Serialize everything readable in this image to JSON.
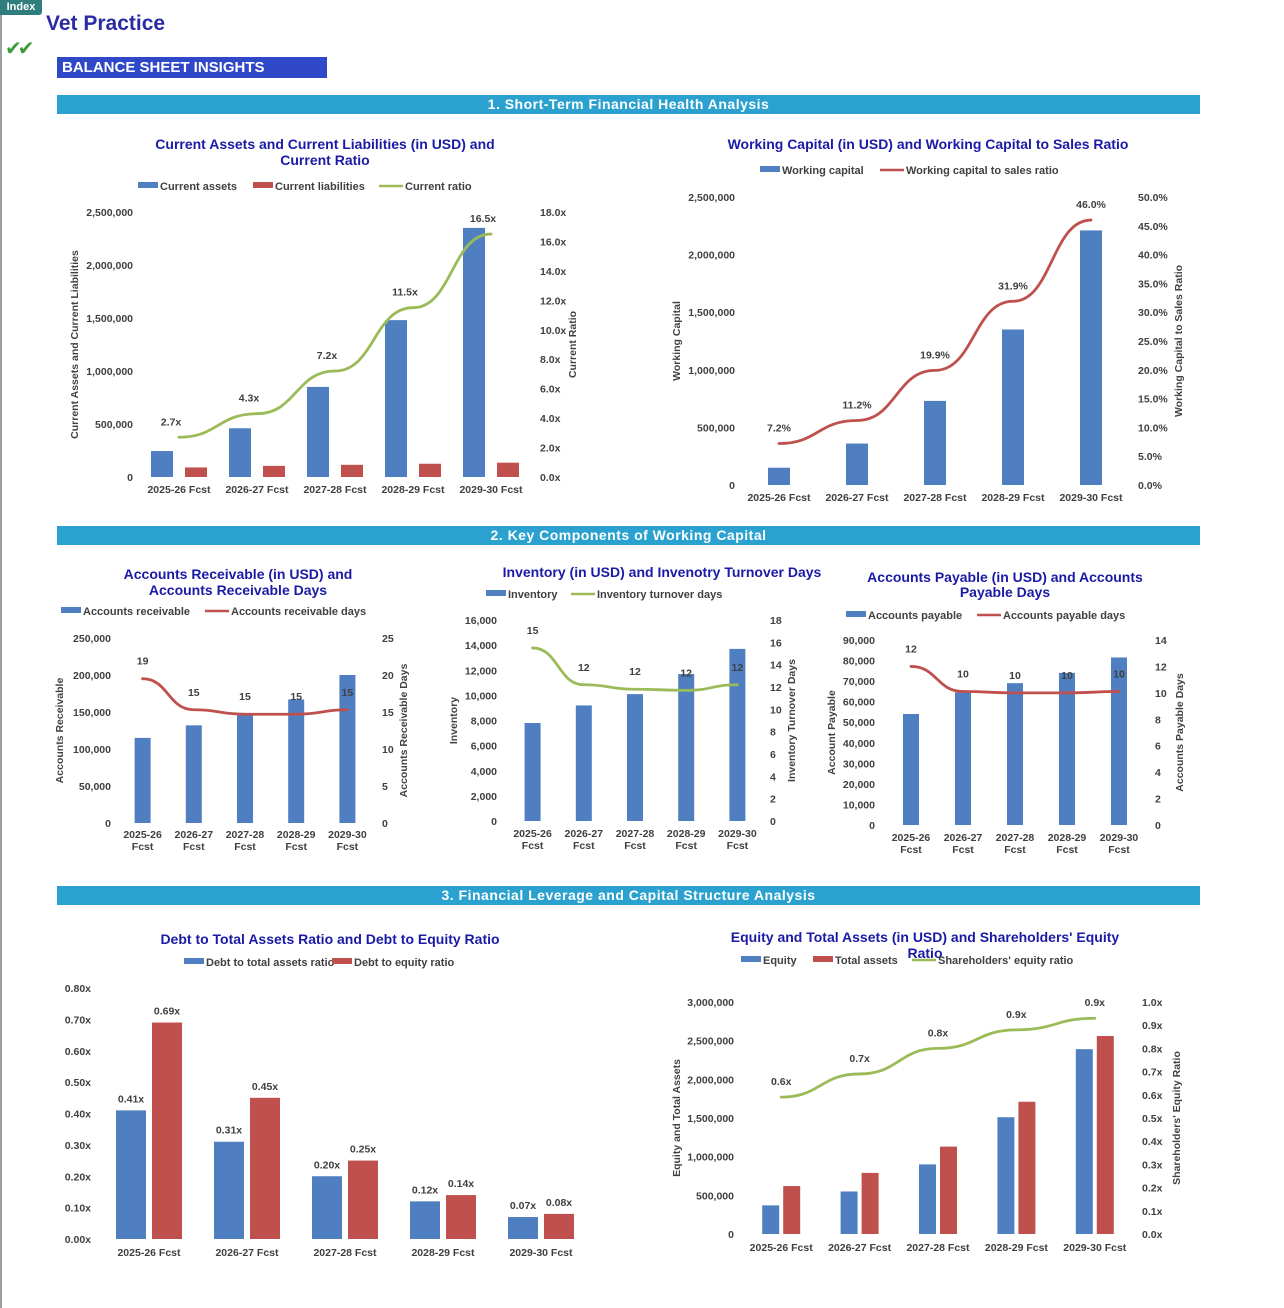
{
  "header": {
    "index_label": "Index",
    "app_title": "Vet Practice",
    "check_glyph": "✔✔",
    "insights_title": "BALANCE SHEET INSIGHTS"
  },
  "sections": [
    {
      "title": "1. Short-Term Financial Health Analysis"
    },
    {
      "title": "2. Key Components of Working Capital"
    },
    {
      "title": "3. Financial Leverage and Capital Structure Analysis"
    }
  ],
  "colors": {
    "blue": "#4f7fc1",
    "red": "#c0504d",
    "green": "#9bbb59",
    "title": "#1a1aa6",
    "band": "#2aa1cf"
  },
  "chart_data": [
    {
      "id": "c1",
      "type": "bar",
      "title": "Current Assets and Current Liabilities (in USD) and Current Ratio",
      "categories": [
        "2025-26 Fcst",
        "2026-27 Fcst",
        "2027-28 Fcst",
        "2028-29 Fcst",
        "2029-30 Fcst"
      ],
      "series": [
        {
          "name": "Current assets",
          "kind": "bar",
          "axis": "left",
          "color": "#4f7fc1",
          "values": [
            245000,
            460000,
            850000,
            1480000,
            2350000
          ]
        },
        {
          "name": "Current liabilities",
          "kind": "bar",
          "axis": "left",
          "color": "#c0504d",
          "values": [
            90000,
            105000,
            115000,
            125000,
            135000
          ]
        },
        {
          "name": "Current ratio",
          "kind": "line",
          "axis": "right",
          "color": "#9bbb59",
          "values": [
            2.7,
            4.3,
            7.2,
            11.5,
            16.5
          ],
          "labels": [
            "2.7x",
            "4.3x",
            "7.2x",
            "11.5x",
            "16.5x"
          ]
        }
      ],
      "ylabel": "Current Assets and Current Liabilities",
      "y2label": "Current Ratio",
      "ylim": [
        0,
        2500000
      ],
      "y2lim": [
        0,
        18
      ],
      "yticks": [
        "0",
        "500,000",
        "1,000,000",
        "1,500,000",
        "2,000,000",
        "2,500,000"
      ],
      "y2ticks": [
        "0.0x",
        "2.0x",
        "4.0x",
        "6.0x",
        "8.0x",
        "10.0x",
        "12.0x",
        "14.0x",
        "16.0x",
        "18.0x"
      ],
      "legend": "top"
    },
    {
      "id": "c2",
      "type": "bar",
      "title": "Working Capital (in USD) and Working Capital to Sales Ratio",
      "categories": [
        "2025-26 Fcst",
        "2026-27 Fcst",
        "2027-28 Fcst",
        "2028-29 Fcst",
        "2029-30 Fcst"
      ],
      "series": [
        {
          "name": "Working capital",
          "kind": "bar",
          "axis": "left",
          "color": "#4f7fc1",
          "values": [
            150000,
            360000,
            730000,
            1350000,
            2210000
          ]
        },
        {
          "name": "Working capital to sales ratio",
          "kind": "line",
          "axis": "right",
          "color": "#c0504d",
          "values": [
            7.2,
            11.2,
            19.9,
            31.9,
            46.0
          ],
          "labels": [
            "7.2%",
            "11.2%",
            "19.9%",
            "31.9%",
            "46.0%"
          ]
        }
      ],
      "ylabel": "Working Capital",
      "y2label": "Working Capital to Sales Ratio",
      "ylim": [
        0,
        2500000
      ],
      "y2lim": [
        0,
        50
      ],
      "yticks": [
        "0",
        "500,000",
        "1,000,000",
        "1,500,000",
        "2,000,000",
        "2,500,000"
      ],
      "y2ticks": [
        "0.0%",
        "5.0%",
        "10.0%",
        "15.0%",
        "20.0%",
        "25.0%",
        "30.0%",
        "35.0%",
        "40.0%",
        "45.0%",
        "50.0%"
      ],
      "legend": "top"
    },
    {
      "id": "c3",
      "type": "bar",
      "title": "Accounts Receivable (in USD) and Accounts Receivable Days",
      "categories": [
        "2025-26 Fcst",
        "2026-27 Fcst",
        "2027-28 Fcst",
        "2028-29 Fcst",
        "2029-30 Fcst"
      ],
      "series": [
        {
          "name": "Accounts receivable",
          "kind": "bar",
          "axis": "left",
          "color": "#4f7fc1",
          "values": [
            115000,
            132000,
            148000,
            167000,
            200000
          ]
        },
        {
          "name": "Accounts receivable days",
          "kind": "line",
          "axis": "right",
          "color": "#c0504d",
          "values": [
            19.5,
            15.3,
            14.7,
            14.7,
            15.3
          ],
          "labels": [
            "19",
            "15",
            "15",
            "15",
            "15"
          ]
        }
      ],
      "ylabel": "Accounts Receivable",
      "y2label": "Accounts Receivable Days",
      "ylim": [
        0,
        250000
      ],
      "y2lim": [
        0,
        25
      ],
      "yticks": [
        "0",
        "50,000",
        "100,000",
        "150,000",
        "200,000",
        "250,000"
      ],
      "y2ticks": [
        "0",
        "5",
        "10",
        "15",
        "20",
        "25"
      ],
      "legend": "top"
    },
    {
      "id": "c4",
      "type": "bar",
      "title": "Inventory (in USD) and Invenotry Turnover Days",
      "categories": [
        "2025-26 Fcst",
        "2026-27 Fcst",
        "2027-28 Fcst",
        "2028-29 Fcst",
        "2029-30 Fcst"
      ],
      "series": [
        {
          "name": "Inventory",
          "kind": "bar",
          "axis": "left",
          "color": "#4f7fc1",
          "values": [
            7800,
            9200,
            10100,
            11700,
            13700
          ]
        },
        {
          "name": "Inventory turnover days",
          "kind": "line",
          "axis": "right",
          "color": "#9bbb59",
          "values": [
            15.5,
            12.2,
            11.8,
            11.7,
            12.2
          ],
          "labels": [
            "15",
            "12",
            "12",
            "12",
            "12"
          ]
        }
      ],
      "ylabel": "Inventory",
      "y2label": "Inventory Turnover Days",
      "ylim": [
        0,
        16000
      ],
      "y2lim": [
        0,
        18
      ],
      "yticks": [
        "0",
        "2,000",
        "4,000",
        "6,000",
        "8,000",
        "10,000",
        "12,000",
        "14,000",
        "16,000"
      ],
      "y2ticks": [
        "0",
        "2",
        "4",
        "6",
        "8",
        "10",
        "12",
        "14",
        "16",
        "18"
      ],
      "legend": "top"
    },
    {
      "id": "c5",
      "type": "bar",
      "title": "Accounts Payable (in USD) and Accounts Payable Days",
      "categories": [
        "2025-26 Fcst",
        "2026-27 Fcst",
        "2027-28 Fcst",
        "2028-29 Fcst",
        "2029-30 Fcst"
      ],
      "series": [
        {
          "name": "Accounts payable",
          "kind": "bar",
          "axis": "left",
          "color": "#4f7fc1",
          "values": [
            54000,
            64500,
            69000,
            74000,
            81500
          ]
        },
        {
          "name": "Accounts payable days",
          "kind": "line",
          "axis": "right",
          "color": "#c0504d",
          "values": [
            12.0,
            10.1,
            10.0,
            10.0,
            10.1
          ],
          "labels": [
            "12",
            "10",
            "10",
            "10",
            "10"
          ]
        }
      ],
      "ylabel": "Account Payable",
      "y2label": "Accounts Payable Days",
      "ylim": [
        0,
        90000
      ],
      "y2lim": [
        0,
        14
      ],
      "yticks": [
        "0",
        "10,000",
        "20,000",
        "30,000",
        "40,000",
        "50,000",
        "60,000",
        "70,000",
        "80,000",
        "90,000"
      ],
      "y2ticks": [
        "0",
        "2",
        "4",
        "6",
        "8",
        "10",
        "12",
        "14"
      ],
      "legend": "top"
    },
    {
      "id": "c6",
      "type": "bar",
      "title": "Debt to Total Assets Ratio and Debt to Equity Ratio",
      "categories": [
        "2025-26 Fcst",
        "2026-27 Fcst",
        "2027-28 Fcst",
        "2028-29 Fcst",
        "2029-30 Fcst"
      ],
      "series": [
        {
          "name": "Debt to total assets ratio",
          "kind": "bar",
          "axis": "left",
          "color": "#4f7fc1",
          "values": [
            0.41,
            0.31,
            0.2,
            0.12,
            0.07
          ],
          "labels": [
            "0.41x",
            "0.31x",
            "0.20x",
            "0.12x",
            "0.07x"
          ]
        },
        {
          "name": "Debt to equity ratio",
          "kind": "bar",
          "axis": "left",
          "color": "#c0504d",
          "values": [
            0.69,
            0.45,
            0.25,
            0.14,
            0.08
          ],
          "labels": [
            "0.69x",
            "0.45x",
            "0.25x",
            "0.14x",
            "0.08x"
          ]
        }
      ],
      "ylabel": "",
      "y2label": "",
      "ylim": [
        0,
        0.8
      ],
      "yticks": [
        "0.00x",
        "0.10x",
        "0.20x",
        "0.30x",
        "0.40x",
        "0.50x",
        "0.60x",
        "0.70x",
        "0.80x"
      ],
      "legend": "top"
    },
    {
      "id": "c7",
      "type": "bar",
      "title": "Equity and Total Assets (in USD) and Shareholders' Equity Ratio",
      "categories": [
        "2025-26 Fcst",
        "2026-27 Fcst",
        "2027-28 Fcst",
        "2028-29 Fcst",
        "2029-30 Fcst"
      ],
      "series": [
        {
          "name": "Equity",
          "kind": "bar",
          "axis": "left",
          "color": "#4f7fc1",
          "values": [
            370000,
            550000,
            900000,
            1510000,
            2390000
          ]
        },
        {
          "name": "Total assets",
          "kind": "bar",
          "axis": "left",
          "color": "#c0504d",
          "values": [
            620000,
            790000,
            1130000,
            1710000,
            2560000
          ]
        },
        {
          "name": "Shareholders' equity ratio",
          "kind": "line",
          "axis": "right",
          "color": "#9bbb59",
          "values": [
            0.59,
            0.69,
            0.8,
            0.88,
            0.93
          ],
          "labels": [
            "0.6x",
            "0.7x",
            "0.8x",
            "0.9x",
            "0.9x"
          ]
        }
      ],
      "ylabel": "Equity and Total Assets",
      "y2label": "Shareholders' Equity  Ratio",
      "ylim": [
        0,
        3000000
      ],
      "y2lim": [
        0,
        1.0
      ],
      "yticks": [
        "0",
        "500,000",
        "1,000,000",
        "1,500,000",
        "2,000,000",
        "2,500,000",
        "3,000,000"
      ],
      "y2ticks": [
        "0.0x",
        "0.1x",
        "0.2x",
        "0.3x",
        "0.4x",
        "0.5x",
        "0.6x",
        "0.7x",
        "0.8x",
        "0.9x",
        "1.0x"
      ],
      "legend": "top"
    }
  ]
}
